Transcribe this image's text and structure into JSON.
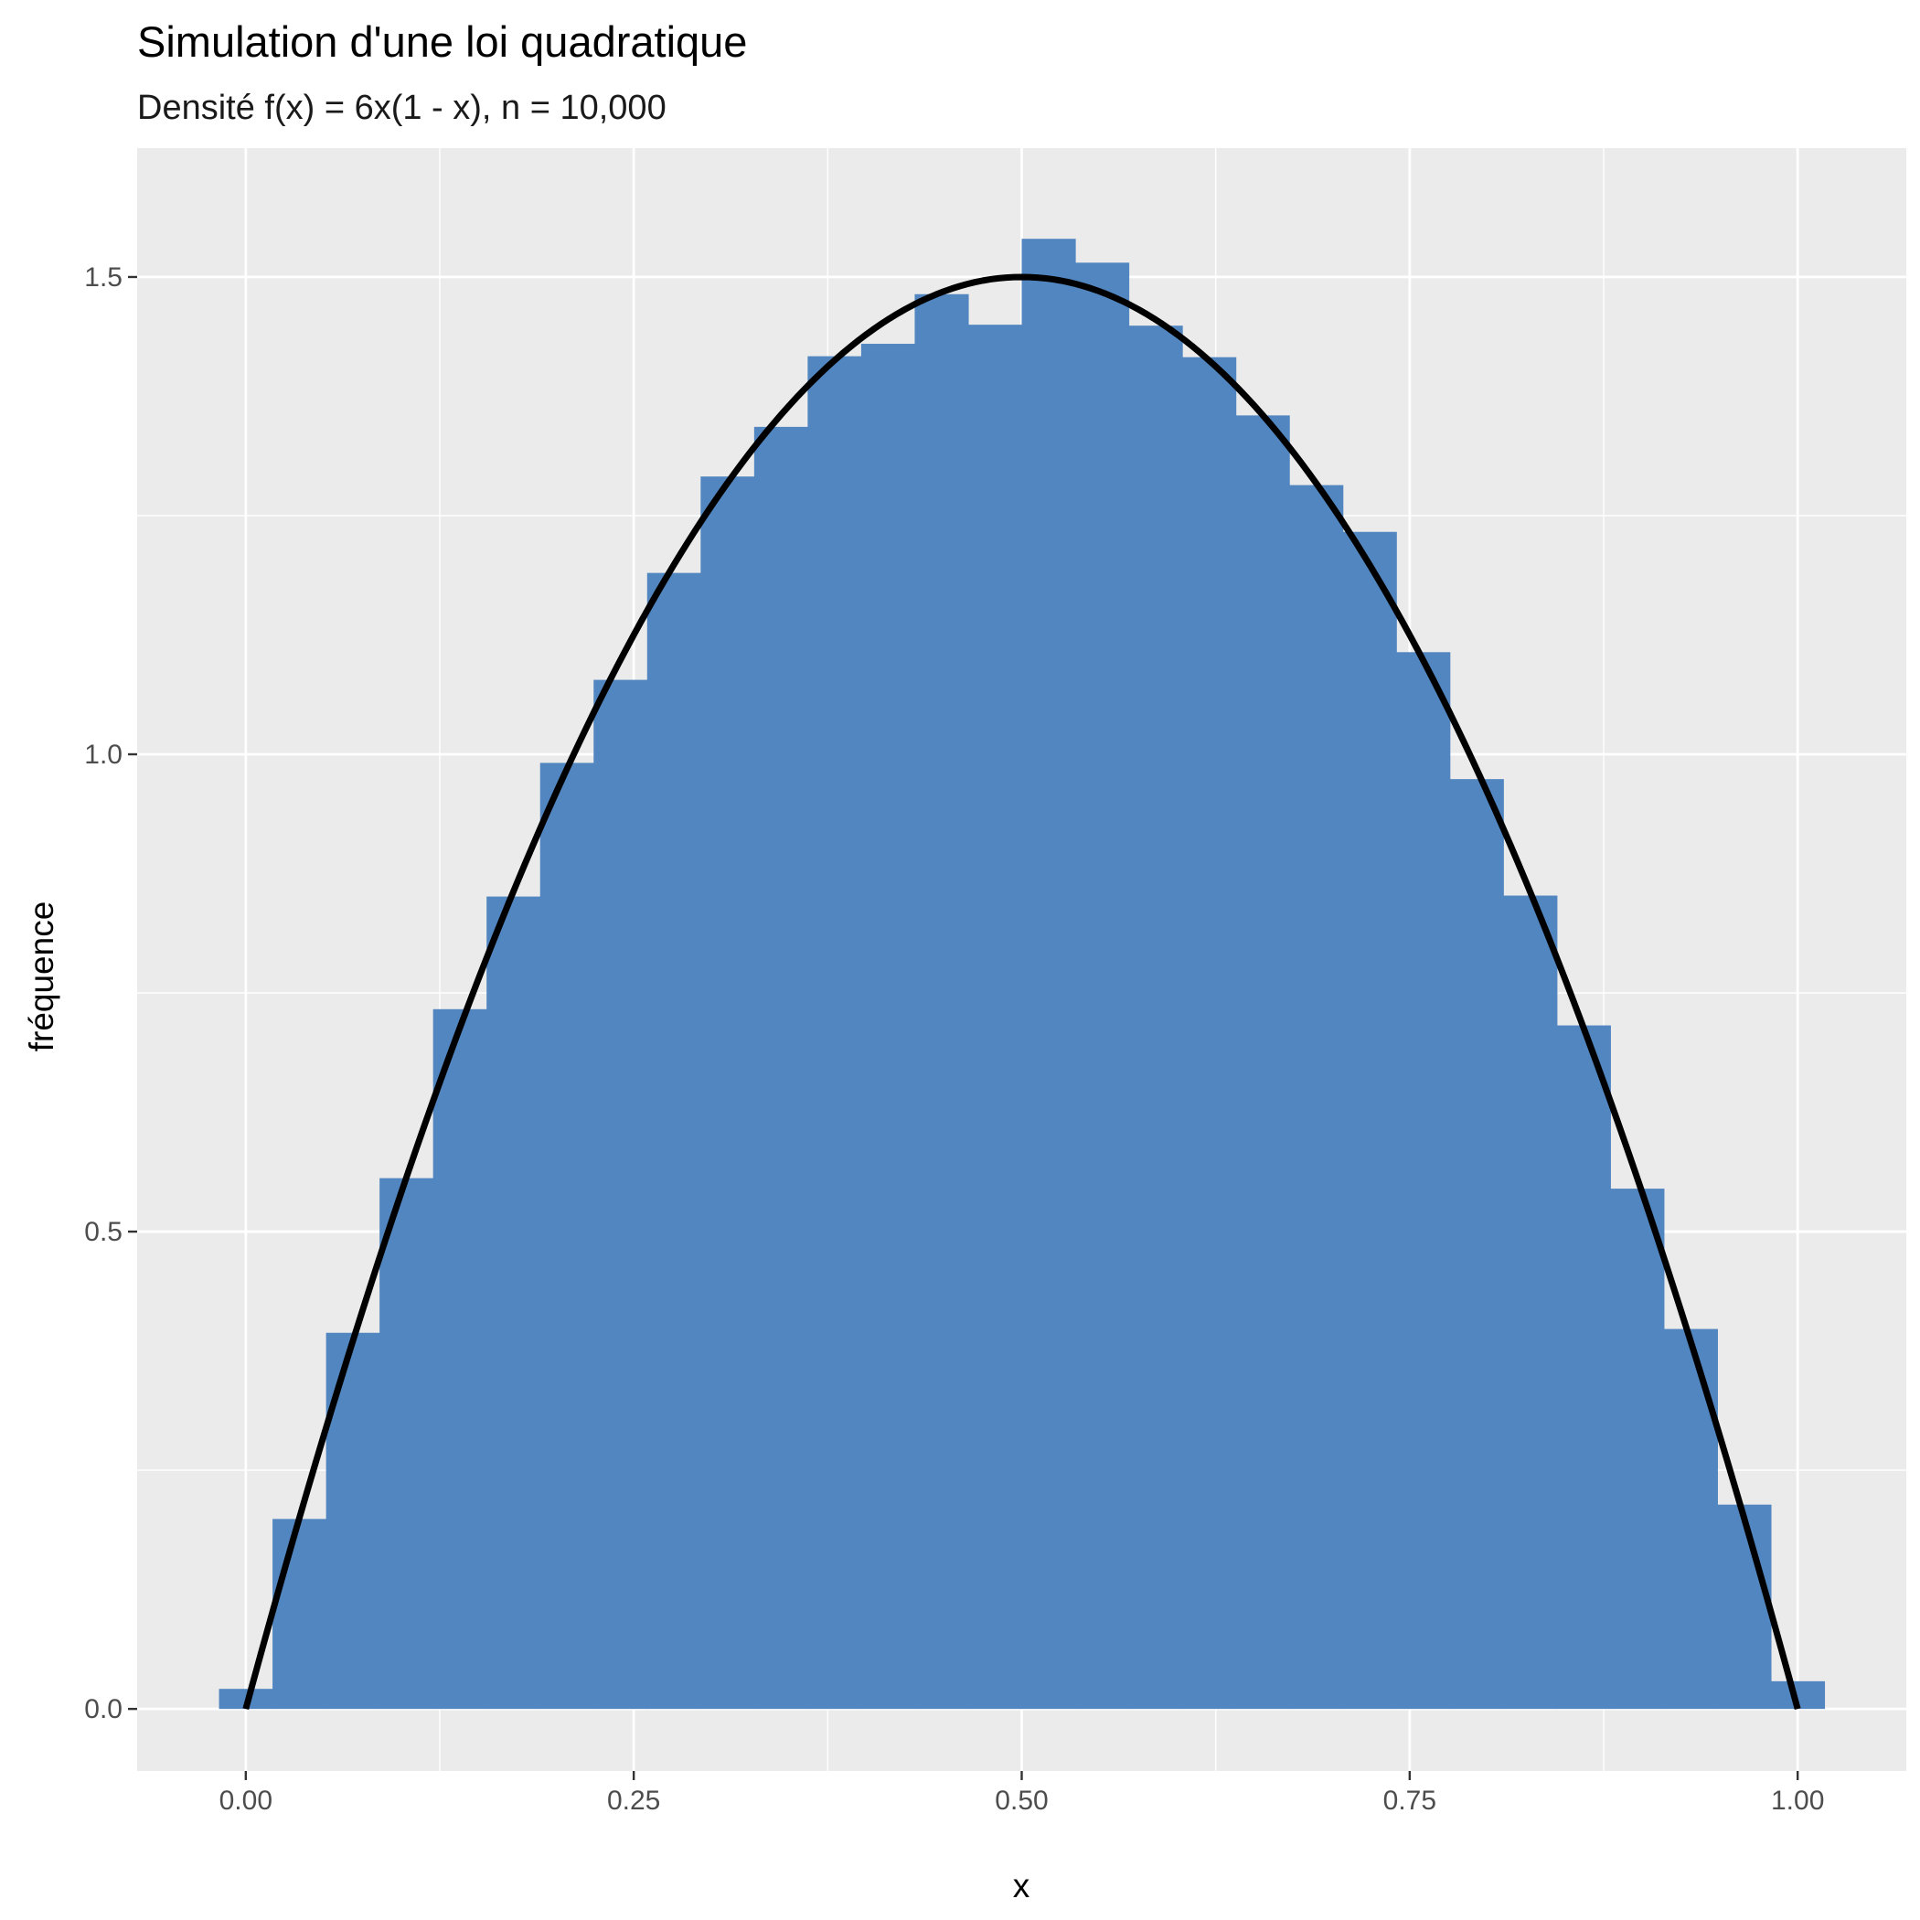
{
  "chart_data": {
    "type": "bar",
    "title": "Simulation d'une loi quadratique",
    "subtitle": "Densité f(x) = 6x(1 - x), n = 10,000",
    "xlabel": "x",
    "ylabel": "fréquence",
    "xlim": [
      -0.07,
      1.07
    ],
    "ylim": [
      -0.065,
      1.635
    ],
    "x_ticks": [
      {
        "value": 0.0,
        "label": "0.00"
      },
      {
        "value": 0.25,
        "label": "0.25"
      },
      {
        "value": 0.5,
        "label": "0.50"
      },
      {
        "value": 0.75,
        "label": "0.75"
      },
      {
        "value": 1.0,
        "label": "1.00"
      }
    ],
    "y_ticks": [
      {
        "value": 0.0,
        "label": "0.0"
      },
      {
        "value": 0.5,
        "label": "0.5"
      },
      {
        "value": 1.0,
        "label": "1.0"
      },
      {
        "value": 1.5,
        "label": "1.5"
      }
    ],
    "grid": true,
    "legend": "none",
    "bin_width": 0.03448,
    "bins": {
      "centers": [
        0.0,
        0.03448,
        0.06897,
        0.10345,
        0.13793,
        0.17241,
        0.2069,
        0.24138,
        0.27586,
        0.31034,
        0.34483,
        0.37931,
        0.41379,
        0.44828,
        0.48276,
        0.51724,
        0.55172,
        0.58621,
        0.62069,
        0.65517,
        0.68966,
        0.72414,
        0.75862,
        0.7931,
        0.82759,
        0.86207,
        0.89655,
        0.93103,
        0.96552,
        1.0
      ],
      "values": [
        0.021,
        0.199,
        0.394,
        0.556,
        0.733,
        0.851,
        0.991,
        1.078,
        1.19,
        1.291,
        1.343,
        1.417,
        1.43,
        1.482,
        1.45,
        1.54,
        1.515,
        1.449,
        1.416,
        1.355,
        1.282,
        1.233,
        1.107,
        0.974,
        0.852,
        0.716,
        0.545,
        0.398,
        0.214,
        0.029
      ]
    },
    "density_curve": {
      "formula": "6x(1 - x)",
      "x_range": [
        0.0,
        1.0
      ],
      "color": "#000000"
    },
    "colors": {
      "bar_fill": "#5286C0",
      "panel_background": "#EBEBEB",
      "grid": "#FFFFFF",
      "curve": "#000000"
    }
  }
}
